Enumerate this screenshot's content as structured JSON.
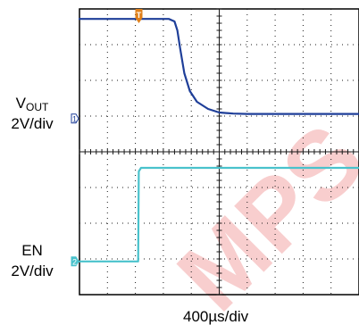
{
  "chart_data": {
    "type": "line",
    "title": "",
    "xlabel": "400µs/div",
    "ylabel": "",
    "x_units": "divisions",
    "grid": true,
    "grid_divisions": {
      "x": 10,
      "y": 8
    },
    "trigger_marker": "T",
    "series": [
      {
        "name": "VOUT",
        "channel_label": "VOUT",
        "channel_label_main": "V",
        "channel_label_sub": "OUT",
        "scale": "2V/div",
        "color": "#1f3f99",
        "ground_marker": "1",
        "ground_level_div": 4.93,
        "points": [
          [
            0,
            7.72
          ],
          [
            3.2,
            7.72
          ],
          [
            3.4,
            7.65
          ],
          [
            3.5,
            7.4
          ],
          [
            3.6,
            6.9
          ],
          [
            3.75,
            6.2
          ],
          [
            3.95,
            5.7
          ],
          [
            4.2,
            5.4
          ],
          [
            4.6,
            5.2
          ],
          [
            5.0,
            5.1
          ],
          [
            5.5,
            5.07
          ],
          [
            6.0,
            5.06
          ],
          [
            10,
            5.06
          ]
        ]
      },
      {
        "name": "EN",
        "channel_label": "EN",
        "scale": "2V/div",
        "color": "#49c2cc",
        "ground_marker": "2",
        "ground_level_div": 0.93,
        "points": [
          [
            0,
            0.93
          ],
          [
            2.1,
            0.93
          ],
          [
            2.12,
            3.45
          ],
          [
            2.2,
            3.55
          ],
          [
            10,
            3.55
          ]
        ]
      }
    ]
  },
  "colors": {
    "trigger": "#e0801a",
    "watermark": "#e23b3b",
    "grid": "#1a1a1a"
  },
  "watermark_text": "MPS"
}
